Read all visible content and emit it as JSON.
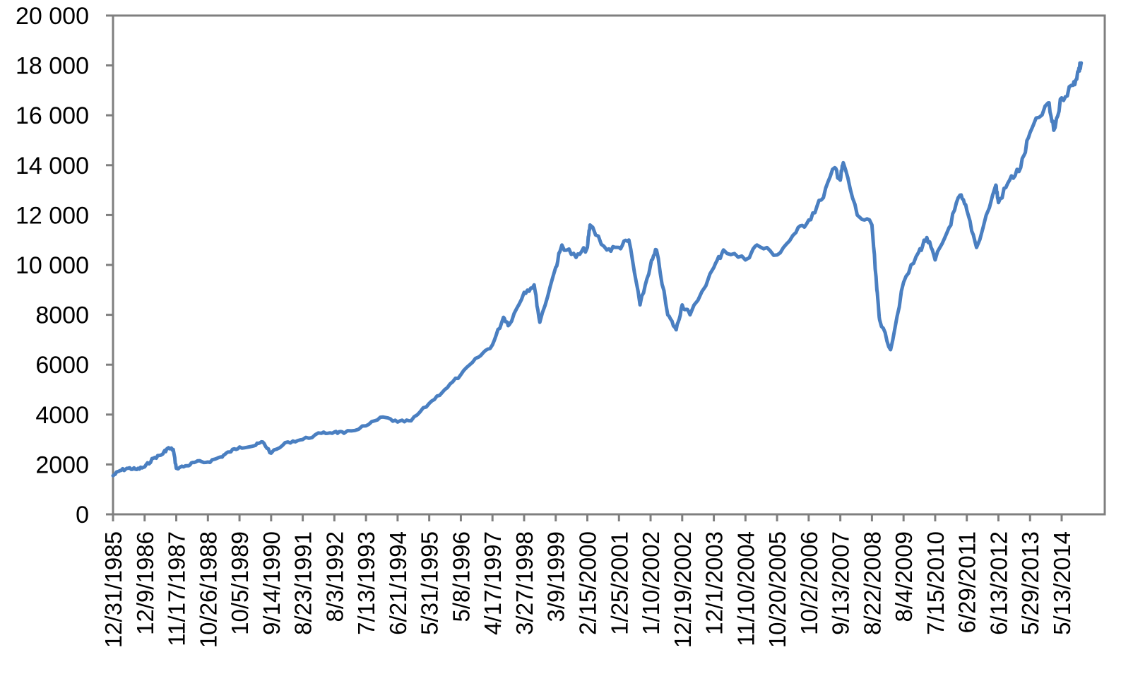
{
  "chart_data": {
    "type": "line",
    "title": "",
    "xlabel": "",
    "ylabel": "",
    "ylim": [
      0,
      20000
    ],
    "grid": false,
    "legend": "none",
    "y_ticks": [
      0,
      2000,
      4000,
      6000,
      8000,
      10000,
      12000,
      14000,
      16000,
      18000,
      20000
    ],
    "y_tick_labels": [
      "0",
      "2000",
      "4000",
      "6000",
      "8000",
      "10 000",
      "12 000",
      "14 000",
      "16 000",
      "18 000",
      "20 000"
    ],
    "x_tick_labels": [
      "12/31/1985",
      "12/9/1986",
      "11/17/1987",
      "10/26/1988",
      "10/5/1989",
      "9/14/1990",
      "8/23/1991",
      "8/3/1992",
      "7/13/1993",
      "6/21/1994",
      "5/31/1995",
      "5/8/1996",
      "4/17/1997",
      "3/27/1998",
      "3/9/1999",
      "2/15/2000",
      "1/25/2001",
      "1/10/2002",
      "12/19/2002",
      "12/1/2003",
      "11/10/2004",
      "10/20/2005",
      "10/2/2006",
      "9/13/2007",
      "8/22/2008",
      "8/4/2009",
      "7/15/2010",
      "6/29/2011",
      "6/13/2012",
      "5/29/2013",
      "5/13/2014"
    ],
    "series": [
      {
        "color": "#4a7fc1",
        "points": [
          [
            "12/31/1985",
            1550
          ],
          [
            "3/1986",
            1750
          ],
          [
            "6/1986",
            1850
          ],
          [
            "9/1986",
            1800
          ],
          [
            "12/9/1986",
            1900
          ],
          [
            "3/1987",
            2250
          ],
          [
            "6/1987",
            2400
          ],
          [
            "8/1987",
            2650
          ],
          [
            "10/1987",
            2600
          ],
          [
            "11/17/1987",
            1850
          ],
          [
            "3/1988",
            1950
          ],
          [
            "6/1988",
            2100
          ],
          [
            "10/26/1988",
            2100
          ],
          [
            "3/1989",
            2300
          ],
          [
            "6/1989",
            2500
          ],
          [
            "10/5/1989",
            2700
          ],
          [
            "3/1990",
            2750
          ],
          [
            "6/1990",
            2900
          ],
          [
            "9/14/1990",
            2450
          ],
          [
            "3/1991",
            2900
          ],
          [
            "8/23/1991",
            3000
          ],
          [
            "3/1992",
            3250
          ],
          [
            "8/3/1992",
            3300
          ],
          [
            "11/1992",
            3250
          ],
          [
            "7/13/1993",
            3550
          ],
          [
            "1/1994",
            3900
          ],
          [
            "6/21/1994",
            3700
          ],
          [
            "11/1994",
            3750
          ],
          [
            "5/31/1995",
            4450
          ],
          [
            "11/1995",
            5000
          ],
          [
            "5/8/1996",
            5600
          ],
          [
            "11/1996",
            6300
          ],
          [
            "4/17/1997",
            6800
          ],
          [
            "8/1997",
            7900
          ],
          [
            "10/1997",
            7600
          ],
          [
            "3/27/1998",
            8900
          ],
          [
            "7/1998",
            9200
          ],
          [
            "9/1998",
            7700
          ],
          [
            "3/9/1999",
            9900
          ],
          [
            "5/1999",
            10800
          ],
          [
            "10/1999",
            10300
          ],
          [
            "2/15/2000",
            10700
          ],
          [
            "3/2000",
            11600
          ],
          [
            "9/2000",
            10600
          ],
          [
            "1/25/2001",
            10700
          ],
          [
            "5/2001",
            11000
          ],
          [
            "9/2001",
            8400
          ],
          [
            "1/10/2002",
            10000
          ],
          [
            "3/2002",
            10600
          ],
          [
            "7/2002",
            8000
          ],
          [
            "10/2002",
            7400
          ],
          [
            "12/19/2002",
            8400
          ],
          [
            "3/2003",
            8000
          ],
          [
            "12/1/2003",
            9900
          ],
          [
            "3/2004",
            10600
          ],
          [
            "11/10/2004",
            10200
          ],
          [
            "3/2005",
            10800
          ],
          [
            "10/20/2005",
            10400
          ],
          [
            "5/2006",
            11300
          ],
          [
            "10/2/2006",
            11800
          ],
          [
            "2/2007",
            12600
          ],
          [
            "7/2007",
            13900
          ],
          [
            "9/13/2007",
            13400
          ],
          [
            "10/2007",
            14100
          ],
          [
            "3/2008",
            12000
          ],
          [
            "8/22/2008",
            11600
          ],
          [
            "10/2008",
            9000
          ],
          [
            "11/2008",
            7800
          ],
          [
            "3/2009",
            6600
          ],
          [
            "8/4/2009",
            9300
          ],
          [
            "1/2010",
            10500
          ],
          [
            "4/2010",
            11100
          ],
          [
            "7/15/2010",
            10200
          ],
          [
            "12/2010",
            11500
          ],
          [
            "4/2011",
            12800
          ],
          [
            "6/29/2011",
            12200
          ],
          [
            "10/2011",
            10700
          ],
          [
            "5/2012",
            13200
          ],
          [
            "6/13/2012",
            12500
          ],
          [
            "10/2012",
            13400
          ],
          [
            "2/2013",
            13900
          ],
          [
            "5/29/2013",
            15300
          ],
          [
            "12/2013",
            16500
          ],
          [
            "2/2014",
            15400
          ],
          [
            "5/13/2014",
            16700
          ],
          [
            "9/2014",
            17200
          ],
          [
            "11/2014",
            17800
          ],
          [
            "12/2014",
            18100
          ]
        ]
      }
    ]
  }
}
